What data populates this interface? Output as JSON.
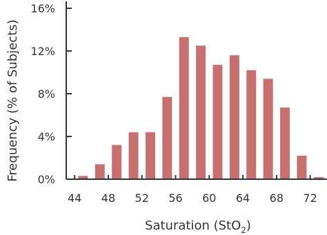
{
  "chart_data": {
    "type": "bar",
    "x": [
      45,
      47,
      49,
      51,
      53,
      55,
      57,
      59,
      61,
      63,
      65,
      67,
      69,
      71,
      73
    ],
    "values": [
      0.3,
      1.4,
      3.2,
      4.4,
      4.4,
      7.7,
      13.3,
      12.5,
      10.7,
      11.6,
      10.2,
      9.4,
      6.7,
      2.2,
      0.2
    ],
    "xlim": [
      43,
      74
    ],
    "ylim": [
      0,
      16
    ],
    "xticks": [
      44,
      48,
      52,
      56,
      60,
      64,
      68,
      72
    ],
    "xtick_labels": [
      "44",
      "48",
      "52",
      "56",
      "60",
      "64",
      "68",
      "72"
    ],
    "yticks": [
      0,
      4,
      8,
      12,
      16
    ],
    "ytick_labels": [
      "0%",
      "4%",
      "8%",
      "12%",
      "16%"
    ],
    "xlabel": "Saturation (StO2)",
    "xlabel_main": "Saturation (StO",
    "xlabel_sub": "2",
    "xlabel_close": ")",
    "ylabel": "Frequency (% of Subjects)",
    "grid": false,
    "bar_color": "#c87070",
    "axis_color": "#333333"
  }
}
